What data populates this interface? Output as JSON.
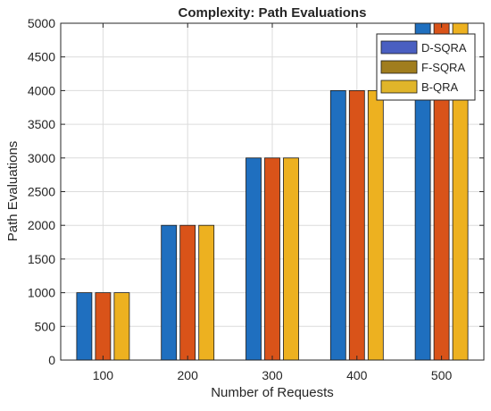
{
  "chart_data": {
    "type": "bar",
    "title": "Complexity: Path Evaluations",
    "xlabel": "Number of Requests",
    "ylabel": "Path Evaluations",
    "categories": [
      "100",
      "200",
      "300",
      "400",
      "500"
    ],
    "series": [
      {
        "name": "D-SQRA",
        "values": [
          1000,
          2000,
          3000,
          4000,
          5000
        ],
        "color": "#1f6fbf",
        "legend_color": "#4a5fc1"
      },
      {
        "name": "F-SQRA",
        "values": [
          1000,
          2000,
          3000,
          4000,
          5000
        ],
        "color": "#d95319",
        "legend_color": "#a07d1e"
      },
      {
        "name": "B-QRA",
        "values": [
          1000,
          2000,
          3000,
          4000,
          5000
        ],
        "color": "#edb120",
        "legend_color": "#e0b52a"
      }
    ],
    "ylim": [
      0,
      5000
    ],
    "yticks": [
      0,
      500,
      1000,
      1500,
      2000,
      2500,
      3000,
      3500,
      4000,
      4500,
      5000
    ],
    "grid": true,
    "legend_position": "top-right"
  }
}
